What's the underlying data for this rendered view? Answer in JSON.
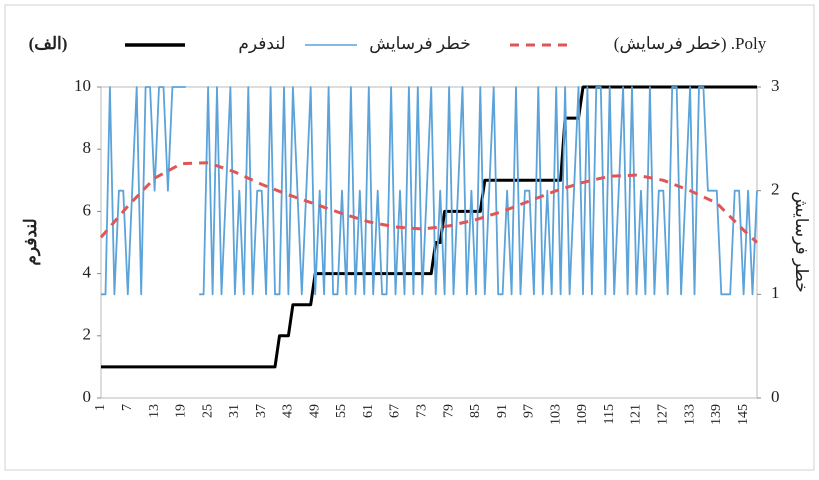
{
  "chart_data": {
    "type": "line",
    "panel_label": "(الف)",
    "y_label": "لندفرم",
    "y2_label": "خطر فرسایش",
    "categories": [
      1,
      null,
      null,
      null,
      null,
      null,
      7,
      null,
      null,
      null,
      null,
      null,
      13,
      null,
      null,
      null,
      null,
      null,
      19,
      null,
      null,
      null,
      null,
      null,
      25,
      null,
      null,
      null,
      null,
      null,
      31,
      null,
      null,
      null,
      null,
      null,
      37,
      null,
      null,
      null,
      null,
      null,
      43,
      null,
      null,
      null,
      null,
      null,
      49,
      null,
      null,
      null,
      null,
      null,
      55,
      null,
      null,
      null,
      null,
      null,
      61,
      null,
      null,
      null,
      null,
      null,
      67,
      null,
      null,
      null,
      null,
      null,
      73,
      null,
      null,
      null,
      null,
      null,
      79,
      null,
      null,
      null,
      null,
      null,
      85,
      null,
      null,
      null,
      null,
      null,
      91,
      null,
      null,
      null,
      null,
      null,
      97,
      null,
      null,
      null,
      null,
      null,
      103,
      null,
      null,
      null,
      null,
      null,
      109,
      null,
      null,
      null,
      null,
      null,
      115,
      null,
      null,
      null,
      null,
      null,
      121,
      null,
      null,
      null,
      null,
      null,
      127,
      null,
      null,
      null,
      null,
      null,
      133,
      null,
      null,
      null,
      null,
      null,
      139,
      null,
      null,
      null,
      null,
      null,
      145,
      null,
      null,
      null
    ],
    "series": [
      {
        "name": "لندفرم",
        "color": "#000000",
        "axis": "y",
        "values": [
          1,
          1,
          1,
          1,
          1,
          1,
          1,
          1,
          1,
          1,
          1,
          1,
          1,
          1,
          1,
          1,
          1,
          1,
          1,
          1,
          1,
          1,
          1,
          1,
          1,
          1,
          1,
          1,
          1,
          1,
          1,
          1,
          1,
          1,
          1,
          1,
          1,
          1,
          1,
          1,
          2,
          2,
          2,
          3,
          3,
          3,
          3,
          3,
          4,
          4,
          4,
          4,
          4,
          4,
          4,
          4,
          4,
          4,
          4,
          4,
          4,
          4,
          4,
          4,
          4,
          4,
          4,
          4,
          4,
          4,
          4,
          4,
          4,
          4,
          4,
          5,
          5,
          6,
          6,
          6,
          6,
          6,
          6,
          6,
          6,
          6,
          7,
          7,
          7,
          7,
          7,
          7,
          7,
          7,
          7,
          7,
          7,
          7,
          7,
          7,
          7,
          7,
          7,
          7,
          9,
          9,
          9,
          9,
          10,
          10,
          10,
          10,
          10,
          10,
          10,
          10,
          10,
          10,
          10,
          10,
          10,
          10,
          10,
          10,
          10,
          10,
          10,
          10,
          10,
          10,
          10,
          10,
          10,
          10,
          10,
          10,
          10,
          10,
          10,
          10,
          10,
          10,
          10,
          10,
          10,
          10,
          10,
          10
        ]
      },
      {
        "name": "خطر فرسایش",
        "color": "#5ba3d9",
        "axis": "y2",
        "values": [
          1,
          1,
          3,
          1,
          2,
          2,
          1,
          2,
          3,
          1,
          3,
          3,
          2,
          3,
          3,
          2,
          3,
          3,
          3,
          3,
          null,
          null,
          1,
          1,
          3,
          1,
          3,
          1,
          2,
          3,
          1,
          2,
          1,
          3,
          1,
          2,
          2,
          1,
          3,
          1,
          1,
          3,
          1,
          3,
          2,
          1,
          2,
          3,
          1,
          2,
          1,
          3,
          1,
          1,
          2,
          1,
          3,
          1,
          2,
          1,
          3,
          1,
          2,
          1,
          1,
          3,
          1,
          2,
          1,
          3,
          1,
          3,
          1,
          2,
          3,
          1,
          2,
          1,
          3,
          1,
          2,
          3,
          1,
          2,
          1,
          3,
          1,
          2,
          3,
          1,
          1,
          2,
          1,
          3,
          1,
          2,
          2,
          1,
          3,
          1,
          2,
          1,
          3,
          1,
          3,
          1,
          2,
          3,
          1,
          3,
          1,
          3,
          3,
          1,
          3,
          1,
          2,
          3,
          1,
          3,
          1,
          2,
          1,
          3,
          1,
          2,
          2,
          1,
          3,
          3,
          1,
          2,
          3,
          1,
          3,
          3,
          2,
          2,
          2,
          1,
          1,
          1,
          2,
          2,
          1,
          2,
          1,
          2
        ]
      },
      {
        "name": "Poly. (خطر فرسایش)",
        "color": "#e05555",
        "axis": "y2",
        "dashed": true,
        "x": [
          1,
          7,
          13,
          19,
          25,
          31,
          37,
          43,
          49,
          55,
          61,
          67,
          73,
          79,
          85,
          91,
          97,
          103,
          109,
          115,
          121,
          127,
          133,
          139,
          145,
          148
        ],
        "values": [
          1.55,
          1.85,
          2.12,
          2.26,
          2.27,
          2.18,
          2.06,
          1.96,
          1.87,
          1.78,
          1.7,
          1.65,
          1.63,
          1.66,
          1.72,
          1.8,
          1.9,
          2.0,
          2.08,
          2.14,
          2.15,
          2.1,
          2.0,
          1.88,
          1.62,
          1.5
        ]
      }
    ],
    "ylim": [
      0,
      10
    ],
    "yticks": [
      0,
      2,
      4,
      6,
      8,
      10
    ],
    "y2lim": [
      0,
      3
    ],
    "y2ticks": [
      0,
      1,
      2,
      3
    ]
  }
}
